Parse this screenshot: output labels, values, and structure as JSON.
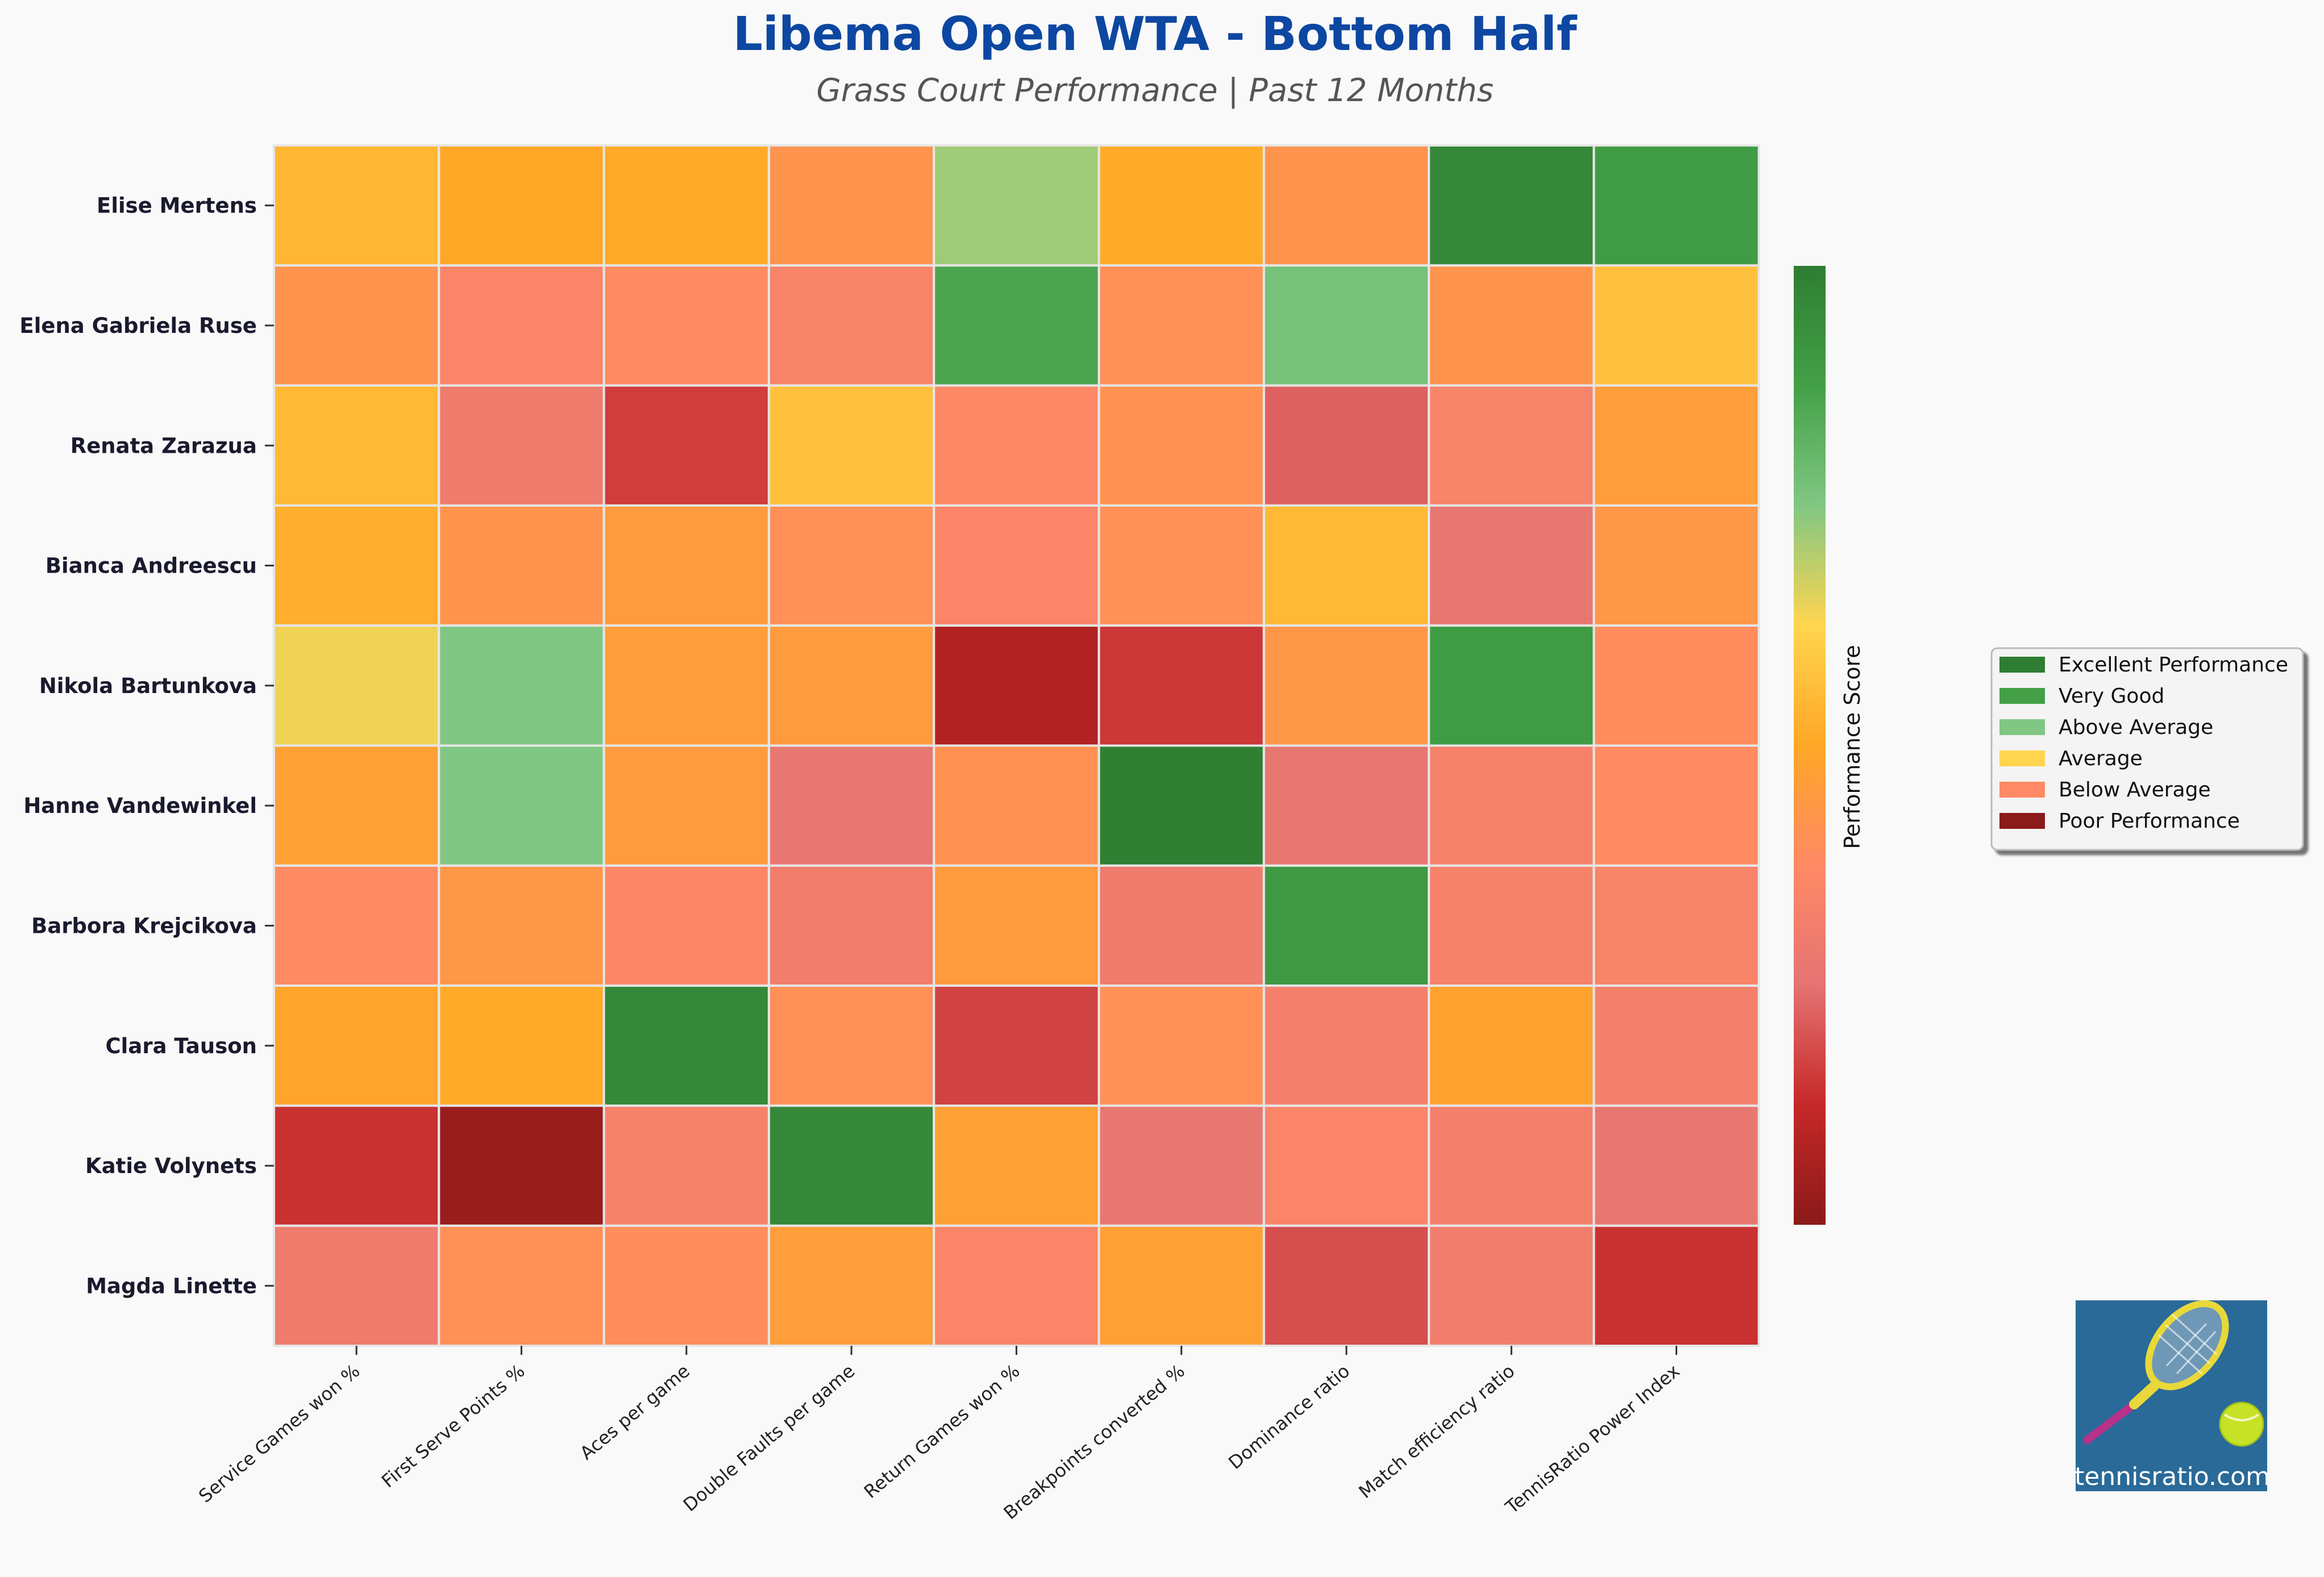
{
  "chart_data": {
    "type": "heatmap",
    "title": "Libema Open WTA - Bottom Half",
    "subtitle": "Grass Court Performance | Past 12 Months",
    "colorbar_label": "Performance Score",
    "grid": true,
    "legend_position": "right",
    "rows": [
      "Elise Mertens",
      "Elena Gabriela Ruse",
      "Renata Zarazua",
      "Bianca Andreescu",
      "Nikola Bartunkova",
      "Hanne Vandewinkel",
      "Barbora Krejcikova",
      "Clara Tauson",
      "Katie Volynets",
      "Magda Linette"
    ],
    "columns": [
      "Service Games won %",
      "First Serve Points %",
      "Aces per game",
      "Double Faults per game",
      "Return Games won %",
      "Breakpoints converted %",
      "Dominance ratio",
      "Match efficiency ratio",
      "TennisRatio Power Index"
    ],
    "values": [
      [
        0.54,
        0.5,
        0.51,
        0.42,
        0.72,
        0.51,
        0.42,
        0.96,
        0.89
      ],
      [
        0.42,
        0.35,
        0.38,
        0.34,
        0.86,
        0.4,
        0.77,
        0.42,
        0.57
      ],
      [
        0.55,
        0.3,
        0.16,
        0.57,
        0.37,
        0.41,
        0.22,
        0.34,
        0.46
      ],
      [
        0.52,
        0.42,
        0.45,
        0.4,
        0.35,
        0.4,
        0.55,
        0.27,
        0.43
      ],
      [
        0.64,
        0.75,
        0.46,
        0.45,
        0.08,
        0.15,
        0.43,
        0.89,
        0.39
      ],
      [
        0.47,
        0.75,
        0.45,
        0.27,
        0.41,
        0.99,
        0.27,
        0.33,
        0.38
      ],
      [
        0.38,
        0.43,
        0.36,
        0.31,
        0.45,
        0.3,
        0.9,
        0.33,
        0.34
      ],
      [
        0.49,
        0.51,
        0.96,
        0.4,
        0.17,
        0.4,
        0.32,
        0.48,
        0.32
      ],
      [
        0.14,
        0.03,
        0.33,
        0.96,
        0.47,
        0.27,
        0.35,
        0.32,
        0.27
      ],
      [
        0.3,
        0.4,
        0.39,
        0.46,
        0.35,
        0.47,
        0.19,
        0.31,
        0.14
      ]
    ],
    "colorscale": [
      "#8b1a1a",
      "#c62828",
      "#e57373",
      "#ff8a65",
      "#ffa726",
      "#ffd54f",
      "#81c784",
      "#43a047",
      "#2e7d32"
    ]
  },
  "legend": [
    {
      "label": "Excellent Performance",
      "color": "#2e7d32"
    },
    {
      "label": "Very Good",
      "color": "#43a047"
    },
    {
      "label": "Above Average",
      "color": "#81c784"
    },
    {
      "label": "Average",
      "color": "#ffd54f"
    },
    {
      "label": "Below Average",
      "color": "#ff8a65"
    },
    {
      "label": "Poor Performance",
      "color": "#8b1a1a"
    }
  ],
  "logo": {
    "text": "tennisratio.com",
    "icon": "tennis-racket-ball-icon"
  }
}
